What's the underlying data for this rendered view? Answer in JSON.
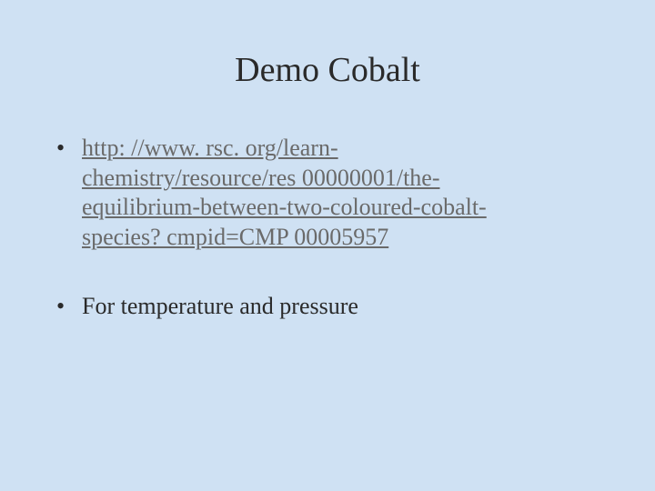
{
  "slide": {
    "background_color": "#cfe1f3",
    "title": "Demo Cobalt",
    "title_color": "#2a2a2a",
    "title_fontsize": 38,
    "body_fontsize": 26,
    "body_color": "#2a2a2a",
    "link_color": "#6a6a6a",
    "bullets": [
      {
        "type": "link",
        "lines": [
          "http: //www. rsc. org/learn-",
          "chemistry/resource/res 00000001/the-",
          "equilibrium-between-two-coloured-cobalt-",
          "species? cmpid=CMP 00005957"
        ]
      },
      {
        "type": "text",
        "text": "For temperature and pressure"
      }
    ]
  }
}
